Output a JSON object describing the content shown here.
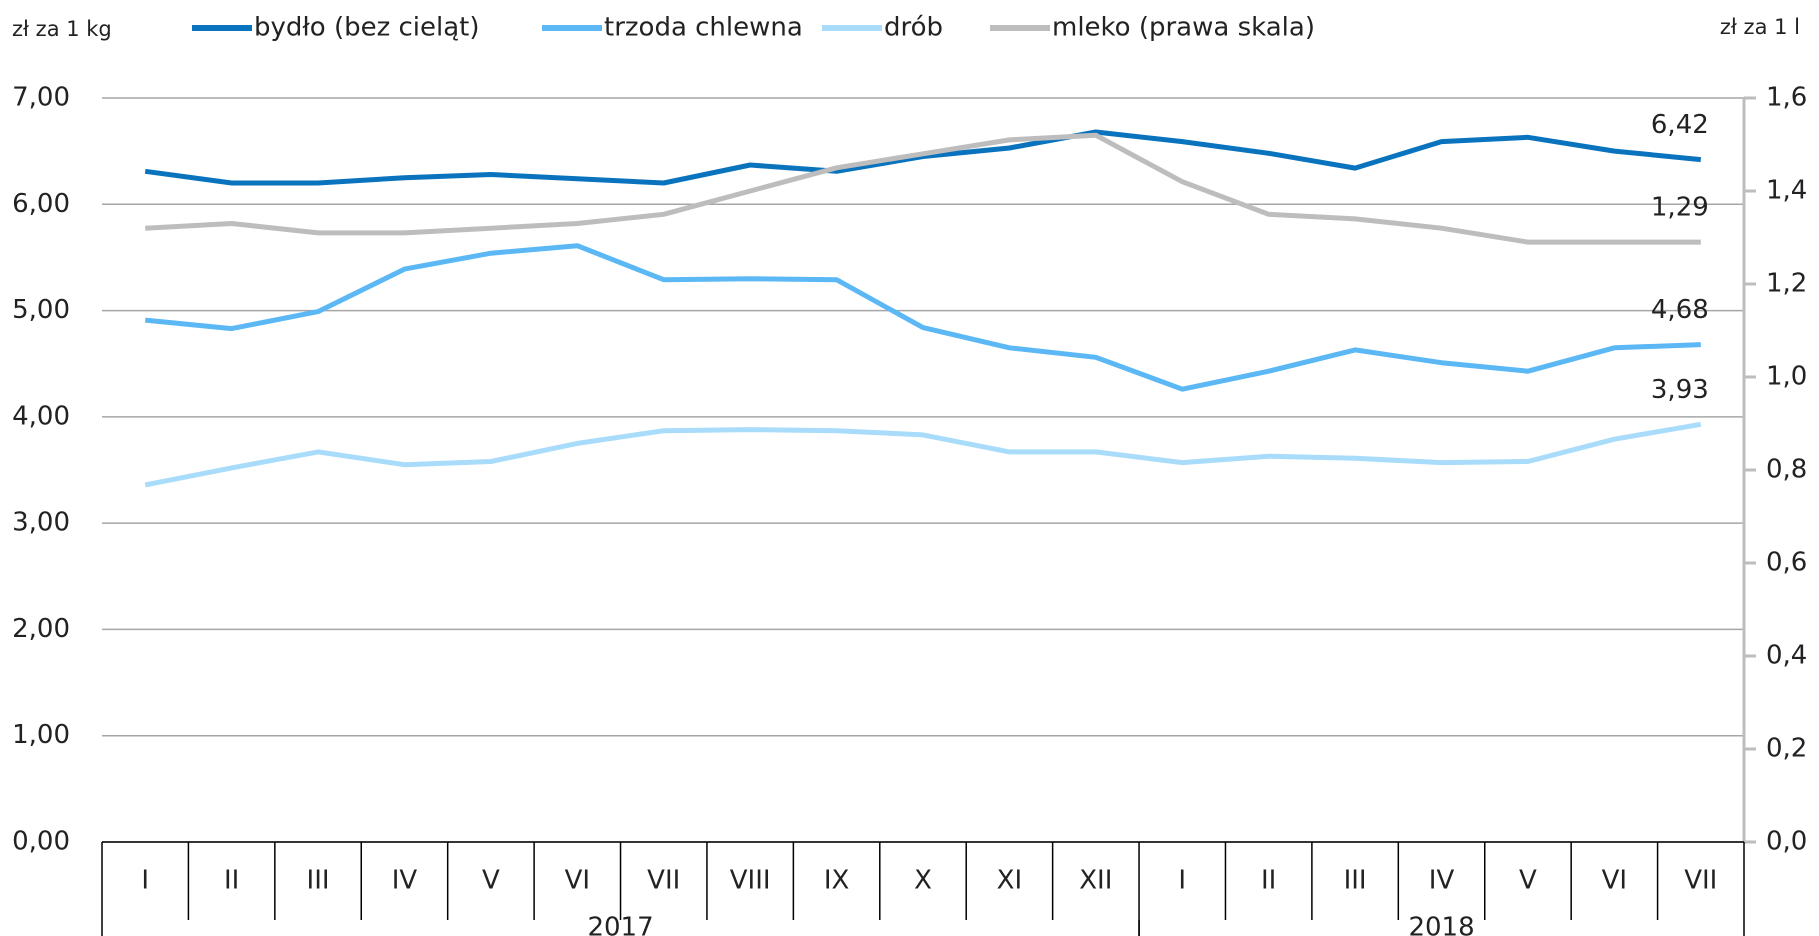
{
  "chart_data": {
    "type": "line",
    "y_label": "zł za 1 kg",
    "y2_label": "zł za 1 l",
    "categories": [
      "I",
      "II",
      "III",
      "IV",
      "V",
      "VI",
      "VII",
      "VIII",
      "IX",
      "X",
      "XI",
      "XII",
      "I",
      "II",
      "III",
      "IV",
      "V",
      "VI",
      "VII"
    ],
    "year_groups": [
      {
        "label": "2017",
        "count": 12
      },
      {
        "label": "2018",
        "count": 7
      }
    ],
    "series": [
      {
        "name": "bydło (bez cieląt)",
        "color": "#0a73bd",
        "values": [
          6.31,
          6.2,
          6.2,
          6.25,
          6.28,
          6.24,
          6.2,
          6.37,
          6.31,
          6.45,
          6.53,
          6.68,
          6.59,
          6.48,
          6.34,
          6.59,
          6.63,
          6.5,
          6.42
        ],
        "value_labels": [
          null,
          null,
          null,
          null,
          null,
          null,
          null,
          null,
          null,
          null,
          null,
          null,
          null,
          null,
          null,
          null,
          null,
          null,
          "6,42"
        ]
      },
      {
        "name": "trzoda chlewna",
        "color": "#5bb8f5",
        "values": [
          4.91,
          4.83,
          4.99,
          5.39,
          5.54,
          5.61,
          5.29,
          5.3,
          5.29,
          4.84,
          4.65,
          4.56,
          4.26,
          4.43,
          4.63,
          4.51,
          4.43,
          4.65,
          4.68
        ],
        "value_labels": [
          null,
          null,
          null,
          null,
          null,
          null,
          null,
          null,
          null,
          null,
          null,
          null,
          null,
          null,
          null,
          null,
          null,
          null,
          "4,68"
        ]
      },
      {
        "name": "drób",
        "color": "#a9dcfb",
        "values": [
          3.36,
          3.52,
          3.67,
          3.55,
          3.58,
          3.75,
          3.87,
          3.88,
          3.87,
          3.83,
          3.67,
          3.67,
          3.57,
          3.63,
          3.61,
          3.57,
          3.58,
          3.79,
          3.93
        ],
        "value_labels": [
          null,
          null,
          null,
          null,
          null,
          null,
          null,
          null,
          null,
          null,
          null,
          null,
          null,
          null,
          null,
          null,
          null,
          null,
          "3,93"
        ]
      },
      {
        "name": "mleko (prawa skala)",
        "color": "#bdbdbd",
        "axis": "y2",
        "values": [
          1.32,
          1.33,
          1.31,
          1.31,
          1.32,
          1.33,
          1.35,
          1.4,
          1.45,
          1.48,
          1.51,
          1.52,
          1.42,
          1.35,
          1.34,
          1.32,
          1.29,
          1.29,
          1.29
        ],
        "value_labels": [
          null,
          null,
          null,
          null,
          null,
          null,
          null,
          null,
          null,
          null,
          null,
          null,
          null,
          null,
          null,
          null,
          null,
          null,
          "1,29"
        ]
      }
    ],
    "ylim": [
      0,
      7
    ],
    "yticks": [
      {
        "value": 0,
        "label": "0,00"
      },
      {
        "value": 1,
        "label": "1,00"
      },
      {
        "value": 2,
        "label": "2,00"
      },
      {
        "value": 3,
        "label": "3,00"
      },
      {
        "value": 4,
        "label": "4,00"
      },
      {
        "value": 5,
        "label": "5,00"
      },
      {
        "value": 6,
        "label": "6,00"
      },
      {
        "value": 7,
        "label": "7,00"
      }
    ],
    "y2lim": [
      0,
      1.6
    ],
    "y2ticks": [
      {
        "value": 0,
        "label": "0,0"
      },
      {
        "value": 0.2,
        "label": "0,2"
      },
      {
        "value": 0.4,
        "label": "0,4"
      },
      {
        "value": 0.6,
        "label": "0,6"
      },
      {
        "value": 0.8,
        "label": "0,8"
      },
      {
        "value": 1.0,
        "label": "1,0"
      },
      {
        "value": 1.2,
        "label": "1,2"
      },
      {
        "value": 1.4,
        "label": "1,4"
      },
      {
        "value": 1.6,
        "label": "1,6"
      }
    ],
    "grid": true,
    "legend": "top"
  }
}
